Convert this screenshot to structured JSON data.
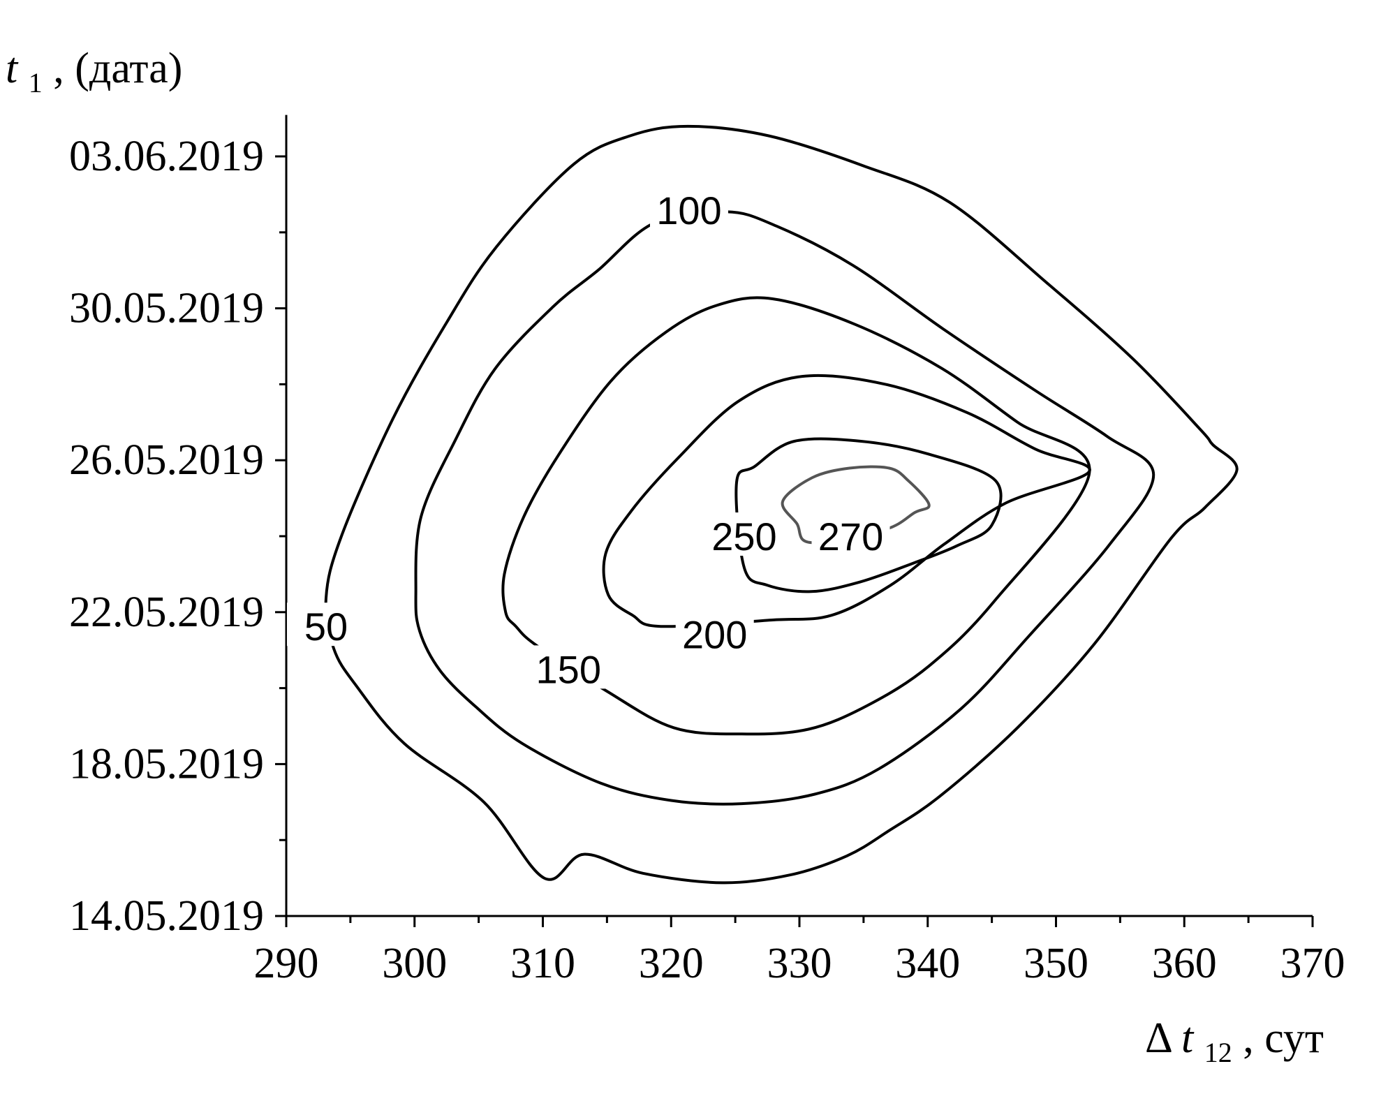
{
  "chart_data": {
    "type": "contour",
    "title": "",
    "xlabel": {
      "prefix": "Δ",
      "var": "t",
      "sub": "12",
      "unit": ", сут"
    },
    "ylabel": {
      "var": "t",
      "sub": "1",
      "unit": ", (дата)"
    },
    "xlim": [
      290,
      370
    ],
    "ylim": [
      "14.05.2019",
      "04.06.2019"
    ],
    "x_ticks": [
      290,
      300,
      310,
      320,
      330,
      340,
      350,
      360,
      370
    ],
    "y_ticks": [
      "14.05.2019",
      "18.05.2019",
      "22.05.2019",
      "26.05.2019",
      "30.05.2019",
      "03.06.2019"
    ],
    "grid": false,
    "contour_levels": [
      {
        "level": "50",
        "color": "#000000",
        "label_at": {
          "x": 293.1,
          "y": "21.05.2019 15:00"
        },
        "points": [
          [
            293.7,
            "21.05.2019 01:00"
          ],
          [
            295.5,
            "20.05.2019 01:00"
          ],
          [
            299.2,
            "18.05.2019 13:00"
          ],
          [
            305.4,
            "17.05.2019 00:00"
          ],
          [
            310.1,
            "15.96.2019 00:00"
          ],
          [
            313.2,
            "15.05.2019 15:00"
          ],
          [
            317.8,
            "15.05.2019 03:00"
          ],
          [
            324.0,
            "14.05.2019 21:00"
          ],
          [
            329.3,
            "15.05.2019 02:00"
          ],
          [
            333.7,
            "15.05.2019 14:00"
          ],
          [
            337.0,
            "16.05.2019 06:00"
          ],
          [
            341.0,
            "17.05.2019 04:00"
          ],
          [
            347.0,
            "18.05.2019 23:00"
          ],
          [
            353.0,
            "21.05.2019 04:00"
          ],
          [
            359.0,
            "23.05.2019 23:00"
          ],
          [
            361.6,
            "24.05.2019 18:00"
          ],
          [
            364.1,
            "25.05.2019 18:00"
          ],
          [
            362.2,
            "26.05.2019 10:00"
          ],
          [
            361.3,
            "26.05.2019 19:00"
          ],
          [
            356.0,
            "28.05.2019 16:00"
          ],
          [
            349.3,
            "30.05.2019 16:00"
          ],
          [
            341.7,
            "01.06.2019 19:00"
          ],
          [
            335.0,
            "02.06.2019 18:00"
          ],
          [
            327.6,
            "03.06.2019 13:00"
          ],
          [
            321.3,
            "03.06.2019 19:00"
          ],
          [
            316.8,
            "03.06.2019 13:00"
          ],
          [
            312.4,
            "02.06.2019 19:00"
          ],
          [
            306.4,
            "31.05.2019 15:00"
          ],
          [
            302.5,
            "29.05.2019 15:00"
          ],
          [
            298.3,
            "27.05.2019 02:00"
          ],
          [
            294.3,
            "24.05.2019 00:00"
          ],
          [
            293.1,
            "22.05.2019 09:00"
          ]
        ]
      },
      {
        "level": "100",
        "color": "#000000",
        "label_at": {
          "x": 321.4,
          "y": "01.06.2019 14:00"
        },
        "points": [
          [
            318.7,
            "01.06.2019 06:00"
          ],
          [
            314.3,
            "31.05.2019 00:00"
          ],
          [
            310.8,
            "30.05.2019 01:00"
          ],
          [
            306.3,
            "28.05.2019 10:00"
          ],
          [
            303.2,
            "26.05.2019 13:00"
          ],
          [
            300.5,
            "24.05.2019 12:00"
          ],
          [
            300.1,
            "22.05.2019 12:00"
          ],
          [
            300.4,
            "21.05.2019 12:00"
          ],
          [
            302.0,
            "20.05.2019 11:00"
          ],
          [
            304.8,
            "19.05.2019 12:00"
          ],
          [
            308.4,
            "18.05.2019 13:00"
          ],
          [
            314.5,
            "17.05.2019 12:00"
          ],
          [
            320.0,
            "17.05.2019 01:00"
          ],
          [
            325.5,
            "16.05.2019 23:00"
          ],
          [
            331.2,
            "17.05.2019 05:00"
          ],
          [
            336.2,
            "17.05.2019 21:00"
          ],
          [
            342.6,
            "19.05.2019 11:00"
          ],
          [
            347.9,
            "21.05.2019 09:00"
          ],
          [
            354.2,
            "23.05.2019 19:00"
          ],
          [
            357.6,
            "25.05.2019 15:00"
          ],
          [
            354.0,
            "26.05.2019 15:00"
          ],
          [
            348.4,
            "27.05.2019 20:00"
          ],
          [
            341.2,
            "29.05.2019 11:00"
          ],
          [
            334.2,
            "31.05.2019 03:00"
          ],
          [
            328.2,
            "01.06.2019 04:00"
          ],
          [
            324.3,
            "01.06.2019 13:00"
          ]
        ]
      },
      {
        "level": "150",
        "color": "#000000",
        "label_at": {
          "x": 312.0,
          "y": "20.05.2019 12:00"
        },
        "points": [
          [
            315.0,
            "19.05.2019 22:00"
          ],
          [
            320.2,
            "18.05.2019 23:00"
          ],
          [
            325.5,
            "18.05.2019 19:00"
          ],
          [
            330.7,
            "18.05.2019 22:00"
          ],
          [
            335.3,
            "19.05.2019 13:00"
          ],
          [
            340.1,
            "20.05.2019 14:00"
          ],
          [
            345.2,
            "22.05.2019 07:00"
          ],
          [
            352.6,
            "25.05.2019 16:00"
          ],
          [
            347.0,
            "27.05.2019 00:00"
          ],
          [
            341.1,
            "28.05.2019 10:00"
          ],
          [
            334.3,
            "29.05.2019 14:00"
          ],
          [
            327.9,
            "30.05.2019 06:00"
          ],
          [
            323.6,
            "30.05.2019 02:00"
          ],
          [
            319.6,
            "29.05.2019 09:00"
          ],
          [
            315.3,
            "28.05.2019 02:00"
          ],
          [
            311.2,
            "26.05.2019 03:00"
          ],
          [
            308.5,
            "24.05.2019 12:00"
          ],
          [
            307.0,
            "23.05.2019 00:00"
          ],
          [
            307.1,
            "22.05.2019 00:00"
          ],
          [
            307.9,
            "21.05.2019 15:00"
          ],
          [
            309.5,
            "21.05.2019 03:00"
          ]
        ]
      },
      {
        "level": "200",
        "color": "#000000",
        "label_at": {
          "x": 323.4,
          "y": "21.05.2019 10:00"
        },
        "points": [
          [
            327.8,
            "21.05.2019 19:00"
          ],
          [
            332.5,
            "21.05.2019 22:00"
          ],
          [
            337.1,
            "22.05.2019 17:00"
          ],
          [
            341.3,
            "23.05.2019 19:00"
          ],
          [
            346.1,
            "24.05.2019 21:00"
          ],
          [
            352.6,
            "25.05.2019 17:00"
          ],
          [
            348.4,
            "26.05.2019 07:00"
          ],
          [
            343.1,
            "27.05.2019 06:00"
          ],
          [
            336.7,
            "28.05.2019 00:00"
          ],
          [
            330.2,
            "28.05.2019 05:00"
          ],
          [
            325.2,
            "27.05.2019 13:00"
          ],
          [
            320.5,
            "26.05.2019 01:00"
          ],
          [
            316.9,
            "24.05.2019 16:00"
          ],
          [
            314.9,
            "23.05.2019 13:00"
          ],
          [
            315.1,
            "22.05.2019 11:00"
          ],
          [
            317.0,
            "21.05.2019 22:00"
          ],
          [
            319.2,
            "21.05.2019 15:00"
          ]
        ]
      },
      {
        "level": "250",
        "color": "#000000",
        "label_at": {
          "x": 325.7,
          "y": "24.05.2019 00:00"
        },
        "points": [
          [
            325.1,
            "25.05.2019 10:00"
          ],
          [
            326.5,
            "25.05.2019 20:00"
          ],
          [
            329.6,
            "26.05.2019 12:00"
          ],
          [
            334.8,
            "26.05.2019 12:00"
          ],
          [
            340.0,
            "26.05.2019 04:00"
          ],
          [
            345.3,
            "25.05.2019 11:00"
          ],
          [
            345.0,
            "24.05.2019 07:00"
          ],
          [
            342.3,
            "23.05.2019 18:00"
          ],
          [
            338.9,
            "23.05.2019 07:00"
          ],
          [
            334.7,
            "22.05.2019 19:00"
          ],
          [
            330.9,
            "22.05.2019 13:00"
          ],
          [
            327.5,
            "22.05.2019 17:00"
          ],
          [
            325.7,
            "23.05.2019 04:00"
          ]
        ]
      },
      {
        "level": "270",
        "color": "#555555",
        "label_at": {
          "x": 334.0,
          "y": "24.05.2019 00:00"
        },
        "points": [
          [
            330.9,
            "23.05.2019 20:00"
          ],
          [
            329.8,
            "24.05.2019 08:00"
          ],
          [
            328.7,
            "24.05.2019 22:00"
          ],
          [
            331.0,
            "25.05.2019 13:00"
          ],
          [
            333.9,
            "25.05.2019 19:00"
          ],
          [
            337.0,
            "25.05.2019 19:00"
          ],
          [
            338.5,
            "25.05.2019 11:00"
          ],
          [
            340.1,
            "24.05.2019 20:00"
          ],
          [
            339.0,
            "24.05.2019 15:00"
          ],
          [
            336.6,
            "24.05.2019 04:00"
          ]
        ]
      }
    ]
  }
}
